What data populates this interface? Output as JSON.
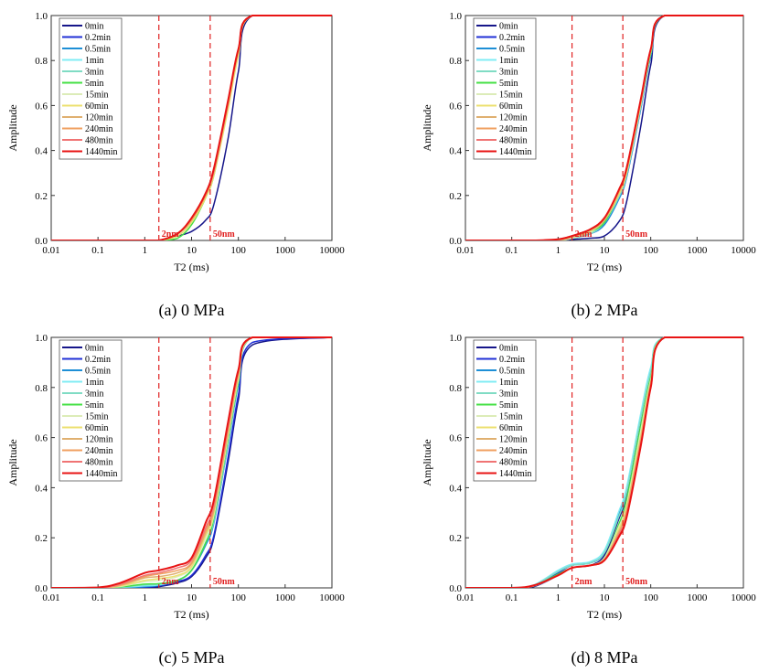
{
  "chart_data": [
    {
      "type": "line",
      "caption": "(a) 0 MPa",
      "xlabel": "T2 (ms)",
      "ylabel": "Amplitude",
      "xscale": "log",
      "xlim": [
        0.01,
        10000
      ],
      "ylim": [
        0,
        1
      ],
      "xticks": [
        "0.01",
        "0.1",
        "1",
        "10",
        "100",
        "1000",
        "10000"
      ],
      "yticks": [
        "0.0",
        "0.2",
        "0.4",
        "0.6",
        "0.8",
        "1.0"
      ],
      "legend_position": "top-left",
      "annotations": [
        {
          "x": 2,
          "label": "2nm"
        },
        {
          "x": 25,
          "label": "50nm"
        }
      ],
      "x": [
        0.01,
        0.1,
        0.3,
        1,
        2,
        5,
        10,
        20,
        30,
        60,
        100,
        200,
        10000
      ],
      "series": [
        {
          "name": "0min",
          "values": [
            0,
            0,
            0,
            0,
            0,
            0.02,
            0.04,
            0.09,
            0.16,
            0.45,
            0.75,
            1,
            1
          ]
        },
        {
          "name": "0.2min",
          "values": [
            0,
            0,
            0,
            0,
            0,
            0.03,
            0.09,
            0.2,
            0.3,
            0.6,
            0.84,
            1,
            1
          ]
        },
        {
          "name": "0.5min",
          "values": [
            0,
            0,
            0,
            0,
            0,
            0.03,
            0.09,
            0.2,
            0.3,
            0.6,
            0.84,
            1,
            1
          ]
        },
        {
          "name": "1min",
          "values": [
            0,
            0,
            0,
            0,
            0,
            0.03,
            0.1,
            0.21,
            0.31,
            0.61,
            0.85,
            1,
            1
          ]
        },
        {
          "name": "3min",
          "values": [
            0,
            0,
            0,
            0,
            0,
            0.03,
            0.1,
            0.21,
            0.31,
            0.61,
            0.85,
            1,
            1
          ]
        },
        {
          "name": "5min",
          "values": [
            0,
            0,
            0,
            0,
            0,
            0.01,
            0.07,
            0.19,
            0.29,
            0.59,
            0.83,
            1,
            1
          ]
        },
        {
          "name": "15min",
          "values": [
            0,
            0,
            0,
            0,
            0,
            0.02,
            0.08,
            0.2,
            0.3,
            0.59,
            0.83,
            1,
            1
          ]
        },
        {
          "name": "60min",
          "values": [
            0,
            0,
            0,
            0,
            0,
            0.02,
            0.08,
            0.19,
            0.29,
            0.58,
            0.82,
            1,
            1
          ]
        },
        {
          "name": "120min",
          "values": [
            0,
            0,
            0,
            0,
            0,
            0.03,
            0.09,
            0.2,
            0.3,
            0.6,
            0.84,
            1,
            1
          ]
        },
        {
          "name": "240min",
          "values": [
            0,
            0,
            0,
            0,
            0,
            0.03,
            0.09,
            0.2,
            0.31,
            0.61,
            0.84,
            1,
            1
          ]
        },
        {
          "name": "480min",
          "values": [
            0,
            0,
            0,
            0,
            0,
            0.03,
            0.1,
            0.21,
            0.31,
            0.61,
            0.85,
            1,
            1
          ]
        },
        {
          "name": "1440min",
          "values": [
            0,
            0,
            0,
            0,
            0,
            0.03,
            0.1,
            0.21,
            0.32,
            0.62,
            0.85,
            1,
            1
          ]
        }
      ]
    },
    {
      "type": "line",
      "caption": "(b) 2 MPa",
      "xlabel": "T2 (ms)",
      "ylabel": "Amplitude",
      "xscale": "log",
      "xlim": [
        0.01,
        10000
      ],
      "ylim": [
        0,
        1
      ],
      "xticks": [
        "0.01",
        "0.1",
        "1",
        "10",
        "100",
        "1000",
        "10000"
      ],
      "yticks": [
        "0.0",
        "0.2",
        "0.4",
        "0.6",
        "0.8",
        "1.0"
      ],
      "legend_position": "top-left",
      "annotations": [
        {
          "x": 2,
          "label": "2nm"
        },
        {
          "x": 25,
          "label": "50nm"
        }
      ],
      "x": [
        0.01,
        0.1,
        0.3,
        1,
        2,
        5,
        10,
        20,
        30,
        60,
        100,
        200,
        10000
      ],
      "series": [
        {
          "name": "0min",
          "values": [
            0,
            0,
            0,
            0,
            0.005,
            0.01,
            0.02,
            0.08,
            0.17,
            0.5,
            0.78,
            1,
            1
          ]
        },
        {
          "name": "0.2min",
          "values": [
            0,
            0,
            0,
            0,
            0.01,
            0.03,
            0.07,
            0.18,
            0.28,
            0.58,
            0.82,
            1,
            1
          ]
        },
        {
          "name": "0.5min",
          "values": [
            0,
            0,
            0,
            0,
            0.01,
            0.03,
            0.07,
            0.18,
            0.28,
            0.58,
            0.82,
            1,
            1
          ]
        },
        {
          "name": "1min",
          "values": [
            0,
            0,
            0,
            0,
            0.01,
            0.03,
            0.08,
            0.19,
            0.29,
            0.59,
            0.83,
            1,
            1
          ]
        },
        {
          "name": "3min",
          "values": [
            0,
            0,
            0,
            0,
            0.01,
            0.03,
            0.08,
            0.19,
            0.29,
            0.59,
            0.83,
            1,
            1
          ]
        },
        {
          "name": "5min",
          "values": [
            0,
            0,
            0,
            0,
            0.01,
            0.04,
            0.08,
            0.2,
            0.3,
            0.6,
            0.83,
            1,
            1
          ]
        },
        {
          "name": "15min",
          "values": [
            0,
            0,
            0,
            0,
            0.01,
            0.04,
            0.09,
            0.2,
            0.3,
            0.6,
            0.84,
            1,
            1
          ]
        },
        {
          "name": "60min",
          "values": [
            0,
            0,
            0,
            0,
            0.015,
            0.04,
            0.09,
            0.2,
            0.3,
            0.6,
            0.84,
            1,
            1
          ]
        },
        {
          "name": "120min",
          "values": [
            0,
            0,
            0,
            0,
            0.015,
            0.045,
            0.09,
            0.21,
            0.31,
            0.61,
            0.84,
            1,
            1
          ]
        },
        {
          "name": "240min",
          "values": [
            0,
            0,
            0,
            0.005,
            0.02,
            0.05,
            0.1,
            0.21,
            0.31,
            0.61,
            0.85,
            1,
            1
          ]
        },
        {
          "name": "480min",
          "values": [
            0,
            0,
            0,
            0.005,
            0.02,
            0.05,
            0.1,
            0.22,
            0.32,
            0.62,
            0.85,
            1,
            1
          ]
        },
        {
          "name": "1440min",
          "values": [
            0,
            0,
            0,
            0.005,
            0.02,
            0.05,
            0.1,
            0.22,
            0.32,
            0.62,
            0.85,
            1,
            1
          ]
        }
      ]
    },
    {
      "type": "line",
      "caption": "(c) 5 MPa",
      "xlabel": "T2 (ms)",
      "ylabel": "Amplitude",
      "xscale": "log",
      "xlim": [
        0.01,
        10000
      ],
      "ylim": [
        0,
        1
      ],
      "xticks": [
        "0.01",
        "0.1",
        "1",
        "10",
        "100",
        "1000",
        "10000"
      ],
      "yticks": [
        "0.0",
        "0.2",
        "0.4",
        "0.6",
        "0.8",
        "1.0"
      ],
      "legend_position": "top-left",
      "annotations": [
        {
          "x": 2,
          "label": "2nm"
        },
        {
          "x": 25,
          "label": "50nm"
        }
      ],
      "x": [
        0.01,
        0.1,
        0.3,
        1,
        2,
        5,
        10,
        20,
        30,
        60,
        100,
        200,
        10000
      ],
      "series": [
        {
          "name": "0min",
          "values": [
            0,
            0,
            0,
            0,
            0.005,
            0.02,
            0.045,
            0.12,
            0.2,
            0.5,
            0.75,
            0.97,
            1
          ]
        },
        {
          "name": "0.2min",
          "values": [
            0,
            0,
            0,
            0.003,
            0.008,
            0.025,
            0.05,
            0.13,
            0.21,
            0.52,
            0.77,
            0.98,
            1
          ]
        },
        {
          "name": "0.5min",
          "values": [
            0,
            0,
            0,
            0.005,
            0.01,
            0.03,
            0.07,
            0.17,
            0.26,
            0.57,
            0.81,
            1,
            1
          ]
        },
        {
          "name": "1min",
          "values": [
            0,
            0,
            0.002,
            0.008,
            0.012,
            0.03,
            0.07,
            0.18,
            0.27,
            0.58,
            0.82,
            1,
            1
          ]
        },
        {
          "name": "3min",
          "values": [
            0,
            0,
            0.003,
            0.012,
            0.015,
            0.03,
            0.07,
            0.18,
            0.27,
            0.58,
            0.82,
            1,
            1
          ]
        },
        {
          "name": "5min",
          "values": [
            0,
            0,
            0.004,
            0.015,
            0.017,
            0.03,
            0.07,
            0.18,
            0.28,
            0.59,
            0.82,
            1,
            1
          ]
        },
        {
          "name": "15min",
          "values": [
            0,
            0,
            0.006,
            0.025,
            0.03,
            0.045,
            0.08,
            0.2,
            0.29,
            0.6,
            0.83,
            1,
            1
          ]
        },
        {
          "name": "60min",
          "values": [
            0,
            0,
            0.008,
            0.03,
            0.037,
            0.05,
            0.085,
            0.21,
            0.3,
            0.61,
            0.84,
            1,
            1
          ]
        },
        {
          "name": "120min",
          "values": [
            0,
            0,
            0.01,
            0.04,
            0.045,
            0.06,
            0.095,
            0.22,
            0.31,
            0.62,
            0.85,
            1,
            1
          ]
        },
        {
          "name": "240min",
          "values": [
            0,
            0,
            0.012,
            0.045,
            0.055,
            0.07,
            0.1,
            0.23,
            0.32,
            0.63,
            0.85,
            1,
            1
          ]
        },
        {
          "name": "480min",
          "values": [
            0,
            0,
            0.015,
            0.05,
            0.06,
            0.08,
            0.11,
            0.24,
            0.33,
            0.64,
            0.86,
            1,
            1
          ]
        },
        {
          "name": "1440min",
          "values": [
            0,
            0.002,
            0.02,
            0.06,
            0.07,
            0.09,
            0.12,
            0.26,
            0.35,
            0.66,
            0.87,
            1,
            1
          ]
        }
      ]
    },
    {
      "type": "line",
      "caption": "(d) 8 MPa",
      "xlabel": "T2 (ms)",
      "ylabel": "Amplitude",
      "xscale": "log",
      "xlim": [
        0.01,
        10000
      ],
      "ylim": [
        0,
        1
      ],
      "xticks": [
        "0.01",
        "0.1",
        "1",
        "10",
        "100",
        "1000",
        "10000"
      ],
      "yticks": [
        "0.0",
        "0.2",
        "0.4",
        "0.6",
        "0.8",
        "1.0"
      ],
      "legend_position": "top-left",
      "annotations": [
        {
          "x": 2,
          "label": "2nm"
        },
        {
          "x": 25,
          "label": "50nm"
        }
      ],
      "x": [
        0.01,
        0.1,
        0.3,
        1,
        2,
        5,
        10,
        20,
        30,
        60,
        100,
        200,
        10000
      ],
      "series": [
        {
          "name": "0min",
          "values": [
            0,
            0,
            0.005,
            0.05,
            0.08,
            0.09,
            0.13,
            0.27,
            0.37,
            0.66,
            0.86,
            1,
            1
          ]
        },
        {
          "name": "0.2min",
          "values": [
            0,
            0,
            0.008,
            0.06,
            0.09,
            0.1,
            0.14,
            0.29,
            0.39,
            0.68,
            0.87,
            1,
            1
          ]
        },
        {
          "name": "0.5min",
          "values": [
            0,
            0,
            0.01,
            0.065,
            0.09,
            0.1,
            0.14,
            0.29,
            0.39,
            0.68,
            0.87,
            1,
            1
          ]
        },
        {
          "name": "1min",
          "values": [
            0,
            0,
            0.012,
            0.07,
            0.095,
            0.105,
            0.15,
            0.3,
            0.4,
            0.69,
            0.88,
            1,
            1
          ]
        },
        {
          "name": "3min",
          "values": [
            0,
            0,
            0.01,
            0.065,
            0.09,
            0.1,
            0.14,
            0.28,
            0.38,
            0.67,
            0.86,
            1,
            1
          ]
        },
        {
          "name": "5min",
          "values": [
            0,
            0,
            0.008,
            0.055,
            0.08,
            0.09,
            0.12,
            0.25,
            0.35,
            0.64,
            0.84,
            1,
            1
          ]
        },
        {
          "name": "15min",
          "values": [
            0,
            0,
            0.008,
            0.05,
            0.08,
            0.09,
            0.12,
            0.24,
            0.33,
            0.62,
            0.83,
            1,
            1
          ]
        },
        {
          "name": "60min",
          "values": [
            0,
            0,
            0.008,
            0.05,
            0.08,
            0.09,
            0.115,
            0.23,
            0.32,
            0.6,
            0.82,
            1,
            1
          ]
        },
        {
          "name": "120min",
          "values": [
            0,
            0,
            0.008,
            0.05,
            0.08,
            0.09,
            0.115,
            0.22,
            0.31,
            0.59,
            0.82,
            1,
            1
          ]
        },
        {
          "name": "240min",
          "values": [
            0,
            0,
            0.008,
            0.05,
            0.08,
            0.09,
            0.11,
            0.21,
            0.3,
            0.58,
            0.81,
            1,
            1
          ]
        },
        {
          "name": "480min",
          "values": [
            0,
            0,
            0.008,
            0.05,
            0.08,
            0.09,
            0.11,
            0.21,
            0.29,
            0.57,
            0.8,
            1,
            1
          ]
        },
        {
          "name": "1440min",
          "values": [
            0,
            0,
            0.01,
            0.05,
            0.08,
            0.09,
            0.11,
            0.2,
            0.28,
            0.56,
            0.8,
            1,
            1
          ]
        }
      ]
    }
  ],
  "colors": [
    "#16168a",
    "#1f2fd6",
    "#1e8fd6",
    "#80ecf4",
    "#80dcc4",
    "#44e044",
    "#dcecb8",
    "#ece070",
    "#e0b070",
    "#f0a060",
    "#f07474",
    "#e81414"
  ]
}
